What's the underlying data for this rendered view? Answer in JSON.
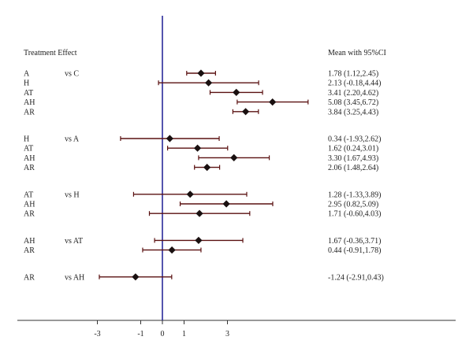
{
  "chart_data": {
    "type": "forest",
    "header_left": "Treatment Effect",
    "header_right": "Mean with 95%CI",
    "x_ticks": [
      -3,
      -1,
      0,
      1,
      3
    ],
    "reference_line": 0,
    "colors": {
      "ci": "#5a1010",
      "point": "#1a1010",
      "reference": "#2a2a9a",
      "axis": "#333333"
    },
    "groups": [
      {
        "comparison": "vs C",
        "rows": [
          {
            "label": "A",
            "mean": 1.78,
            "lower": 1.12,
            "upper": 2.45,
            "text": "1.78 (1.12,2.45)"
          },
          {
            "label": "H",
            "mean": 2.13,
            "lower": -0.18,
            "upper": 4.44,
            "text": "2.13 (-0.18,4.44)"
          },
          {
            "label": "AT",
            "mean": 3.41,
            "lower": 2.2,
            "upper": 4.62,
            "text": "3.41 (2.20,4.62)"
          },
          {
            "label": "AH",
            "mean": 5.08,
            "lower": 3.45,
            "upper": 6.72,
            "text": "5.08 (3.45,6.72)"
          },
          {
            "label": "AR",
            "mean": 3.84,
            "lower": 3.25,
            "upper": 4.43,
            "text": "3.84 (3.25,4.43)"
          }
        ]
      },
      {
        "comparison": "vs A",
        "rows": [
          {
            "label": "H",
            "mean": 0.34,
            "lower": -1.93,
            "upper": 2.62,
            "text": "0.34 (-1.93,2.62)"
          },
          {
            "label": "AT",
            "mean": 1.62,
            "lower": 0.24,
            "upper": 3.01,
            "text": "1.62 (0.24,3.01)"
          },
          {
            "label": "AH",
            "mean": 3.3,
            "lower": 1.67,
            "upper": 4.93,
            "text": "3.30 (1.67,4.93)"
          },
          {
            "label": "AR",
            "mean": 2.06,
            "lower": 1.48,
            "upper": 2.64,
            "text": "2.06 (1.48,2.64)"
          }
        ]
      },
      {
        "comparison": "vs H",
        "rows": [
          {
            "label": "AT",
            "mean": 1.28,
            "lower": -1.33,
            "upper": 3.89,
            "text": "1.28 (-1.33,3.89)"
          },
          {
            "label": "AH",
            "mean": 2.95,
            "lower": 0.82,
            "upper": 5.09,
            "text": "2.95 (0.82,5.09)"
          },
          {
            "label": "AR",
            "mean": 1.71,
            "lower": -0.6,
            "upper": 4.03,
            "text": "1.71 (-0.60,4.03)"
          }
        ]
      },
      {
        "comparison": "vs AT",
        "rows": [
          {
            "label": "AH",
            "mean": 1.67,
            "lower": -0.36,
            "upper": 3.71,
            "text": "1.67 (-0.36,3.71)"
          },
          {
            "label": "AR",
            "mean": 0.44,
            "lower": -0.91,
            "upper": 1.78,
            "text": "0.44 (-0.91,1.78)"
          }
        ]
      },
      {
        "comparison": "vs AH",
        "rows": [
          {
            "label": "AR",
            "mean": -1.24,
            "lower": -2.91,
            "upper": 0.43,
            "text": "-1.24 (-2.91,0.43)"
          }
        ]
      }
    ]
  }
}
